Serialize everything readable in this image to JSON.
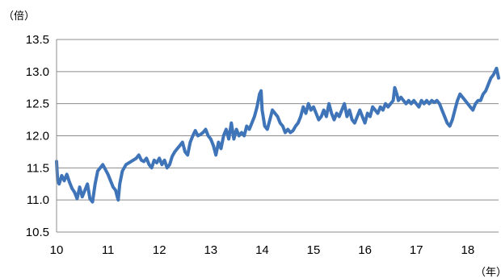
{
  "chart_data": {
    "type": "line",
    "title": "",
    "y_unit": "（倍）",
    "x_unit": "（年）",
    "xlim": [
      2010,
      2018.6
    ],
    "ylim": [
      10.5,
      13.5
    ],
    "x_ticks": [
      {
        "year": 2010,
        "label": "10"
      },
      {
        "year": 2011,
        "label": "11"
      },
      {
        "year": 2012,
        "label": "12"
      },
      {
        "year": 2013,
        "label": "13"
      },
      {
        "year": 2014,
        "label": "14"
      },
      {
        "year": 2015,
        "label": "15"
      },
      {
        "year": 2016,
        "label": "16"
      },
      {
        "year": 2017,
        "label": "17"
      },
      {
        "year": 2018,
        "label": "18"
      }
    ],
    "y_ticks": [
      "10.5",
      "11.0",
      "11.5",
      "12.0",
      "12.5",
      "13.0",
      "13.5"
    ],
    "grid": "horizontal",
    "line_color": "#3f75b8",
    "series": [
      {
        "points": [
          [
            2010.0,
            11.6
          ],
          [
            2010.02,
            11.3
          ],
          [
            2010.05,
            11.25
          ],
          [
            2010.1,
            11.38
          ],
          [
            2010.15,
            11.3
          ],
          [
            2010.2,
            11.4
          ],
          [
            2010.25,
            11.28
          ],
          [
            2010.3,
            11.18
          ],
          [
            2010.35,
            11.12
          ],
          [
            2010.4,
            11.02
          ],
          [
            2010.45,
            11.2
          ],
          [
            2010.5,
            11.05
          ],
          [
            2010.55,
            11.15
          ],
          [
            2010.6,
            11.25
          ],
          [
            2010.65,
            11.02
          ],
          [
            2010.7,
            10.97
          ],
          [
            2010.75,
            11.25
          ],
          [
            2010.8,
            11.45
          ],
          [
            2010.85,
            11.5
          ],
          [
            2010.9,
            11.55
          ],
          [
            2011.0,
            11.4
          ],
          [
            2011.05,
            11.3
          ],
          [
            2011.1,
            11.2
          ],
          [
            2011.15,
            11.15
          ],
          [
            2011.18,
            11.05
          ],
          [
            2011.2,
            11.0
          ],
          [
            2011.23,
            11.25
          ],
          [
            2011.28,
            11.45
          ],
          [
            2011.35,
            11.55
          ],
          [
            2011.45,
            11.6
          ],
          [
            2011.55,
            11.65
          ],
          [
            2011.6,
            11.7
          ],
          [
            2011.65,
            11.62
          ],
          [
            2011.7,
            11.6
          ],
          [
            2011.75,
            11.65
          ],
          [
            2011.8,
            11.55
          ],
          [
            2011.85,
            11.5
          ],
          [
            2011.9,
            11.62
          ],
          [
            2011.95,
            11.58
          ],
          [
            2012.0,
            11.65
          ],
          [
            2012.05,
            11.55
          ],
          [
            2012.1,
            11.62
          ],
          [
            2012.15,
            11.5
          ],
          [
            2012.2,
            11.55
          ],
          [
            2012.25,
            11.68
          ],
          [
            2012.3,
            11.75
          ],
          [
            2012.35,
            11.8
          ],
          [
            2012.4,
            11.85
          ],
          [
            2012.45,
            11.9
          ],
          [
            2012.5,
            11.75
          ],
          [
            2012.55,
            11.7
          ],
          [
            2012.6,
            11.9
          ],
          [
            2012.65,
            12.0
          ],
          [
            2012.7,
            12.08
          ],
          [
            2012.75,
            12.0
          ],
          [
            2012.8,
            12.02
          ],
          [
            2012.85,
            12.05
          ],
          [
            2012.9,
            12.1
          ],
          [
            2012.95,
            12.0
          ],
          [
            2013.0,
            11.95
          ],
          [
            2013.05,
            11.85
          ],
          [
            2013.1,
            11.7
          ],
          [
            2013.15,
            11.9
          ],
          [
            2013.2,
            11.8
          ],
          [
            2013.25,
            12.0
          ],
          [
            2013.3,
            12.1
          ],
          [
            2013.35,
            11.95
          ],
          [
            2013.4,
            12.2
          ],
          [
            2013.45,
            11.95
          ],
          [
            2013.5,
            12.1
          ],
          [
            2013.55,
            12.0
          ],
          [
            2013.6,
            12.05
          ],
          [
            2013.65,
            12.0
          ],
          [
            2013.7,
            12.15
          ],
          [
            2013.75,
            12.1
          ],
          [
            2013.8,
            12.2
          ],
          [
            2013.85,
            12.3
          ],
          [
            2013.9,
            12.45
          ],
          [
            2013.95,
            12.65
          ],
          [
            2013.98,
            12.7
          ],
          [
            2014.0,
            12.4
          ],
          [
            2014.05,
            12.15
          ],
          [
            2014.1,
            12.1
          ],
          [
            2014.15,
            12.25
          ],
          [
            2014.2,
            12.4
          ],
          [
            2014.25,
            12.35
          ],
          [
            2014.3,
            12.3
          ],
          [
            2014.35,
            12.2
          ],
          [
            2014.4,
            12.15
          ],
          [
            2014.45,
            12.05
          ],
          [
            2014.5,
            12.1
          ],
          [
            2014.55,
            12.05
          ],
          [
            2014.6,
            12.08
          ],
          [
            2014.65,
            12.15
          ],
          [
            2014.7,
            12.2
          ],
          [
            2014.75,
            12.3
          ],
          [
            2014.8,
            12.45
          ],
          [
            2014.85,
            12.35
          ],
          [
            2014.9,
            12.5
          ],
          [
            2014.95,
            12.4
          ],
          [
            2015.0,
            12.45
          ],
          [
            2015.05,
            12.35
          ],
          [
            2015.1,
            12.25
          ],
          [
            2015.15,
            12.3
          ],
          [
            2015.2,
            12.4
          ],
          [
            2015.25,
            12.3
          ],
          [
            2015.3,
            12.5
          ],
          [
            2015.35,
            12.35
          ],
          [
            2015.4,
            12.25
          ],
          [
            2015.45,
            12.35
          ],
          [
            2015.5,
            12.3
          ],
          [
            2015.55,
            12.4
          ],
          [
            2015.6,
            12.5
          ],
          [
            2015.65,
            12.3
          ],
          [
            2015.7,
            12.4
          ],
          [
            2015.75,
            12.25
          ],
          [
            2015.8,
            12.2
          ],
          [
            2015.85,
            12.3
          ],
          [
            2015.9,
            12.4
          ],
          [
            2015.95,
            12.3
          ],
          [
            2016.0,
            12.2
          ],
          [
            2016.05,
            12.35
          ],
          [
            2016.1,
            12.3
          ],
          [
            2016.15,
            12.45
          ],
          [
            2016.2,
            12.4
          ],
          [
            2016.25,
            12.35
          ],
          [
            2016.3,
            12.45
          ],
          [
            2016.35,
            12.4
          ],
          [
            2016.4,
            12.5
          ],
          [
            2016.45,
            12.45
          ],
          [
            2016.5,
            12.5
          ],
          [
            2016.55,
            12.55
          ],
          [
            2016.58,
            12.75
          ],
          [
            2016.62,
            12.65
          ],
          [
            2016.65,
            12.55
          ],
          [
            2016.7,
            12.6
          ],
          [
            2016.75,
            12.55
          ],
          [
            2016.8,
            12.5
          ],
          [
            2016.85,
            12.55
          ],
          [
            2016.9,
            12.5
          ],
          [
            2016.95,
            12.55
          ],
          [
            2017.0,
            12.5
          ],
          [
            2017.05,
            12.45
          ],
          [
            2017.1,
            12.55
          ],
          [
            2017.15,
            12.5
          ],
          [
            2017.2,
            12.55
          ],
          [
            2017.25,
            12.5
          ],
          [
            2017.3,
            12.55
          ],
          [
            2017.35,
            12.52
          ],
          [
            2017.4,
            12.55
          ],
          [
            2017.45,
            12.5
          ],
          [
            2017.5,
            12.4
          ],
          [
            2017.55,
            12.3
          ],
          [
            2017.6,
            12.2
          ],
          [
            2017.65,
            12.15
          ],
          [
            2017.7,
            12.25
          ],
          [
            2017.75,
            12.4
          ],
          [
            2017.8,
            12.55
          ],
          [
            2017.85,
            12.65
          ],
          [
            2017.9,
            12.6
          ],
          [
            2017.95,
            12.55
          ],
          [
            2018.0,
            12.5
          ],
          [
            2018.05,
            12.45
          ],
          [
            2018.1,
            12.4
          ],
          [
            2018.15,
            12.5
          ],
          [
            2018.2,
            12.55
          ],
          [
            2018.25,
            12.55
          ],
          [
            2018.3,
            12.65
          ],
          [
            2018.35,
            12.7
          ],
          [
            2018.4,
            12.8
          ],
          [
            2018.45,
            12.9
          ],
          [
            2018.5,
            12.95
          ],
          [
            2018.53,
            13.0
          ],
          [
            2018.56,
            13.05
          ],
          [
            2018.6,
            12.9
          ]
        ]
      }
    ]
  }
}
